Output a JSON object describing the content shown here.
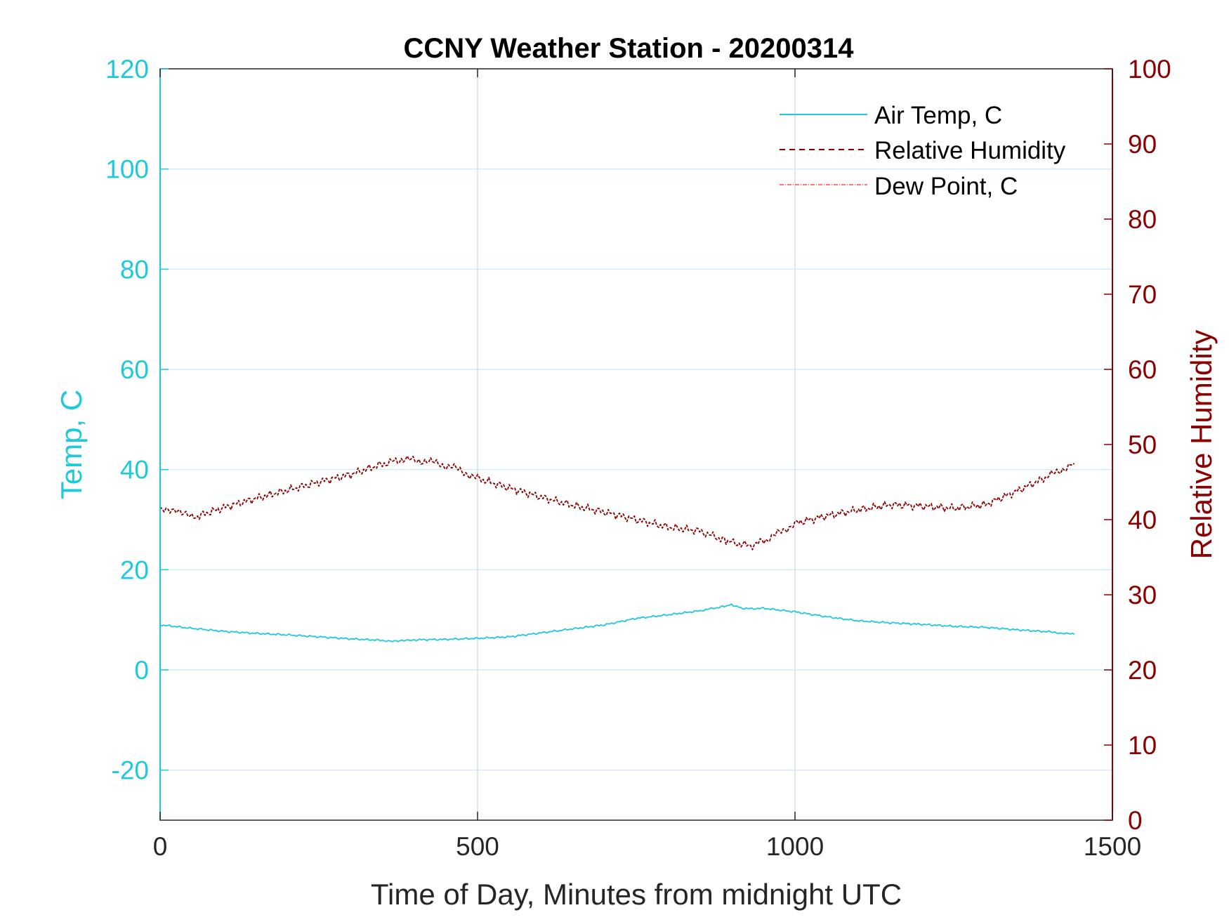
{
  "chart_data": {
    "type": "line",
    "title": "CCNY Weather Station - 20200314",
    "xlabel": "Time of Day, Minutes from midnight UTC",
    "ylabel_left": "Temp, C",
    "ylabel_right": "Relative Humidity",
    "xlim": [
      0,
      1500
    ],
    "ylim_left": [
      -30,
      120
    ],
    "ylim_right": [
      0,
      100
    ],
    "x_ticks": [
      "0",
      "500",
      "1000",
      "1500"
    ],
    "left_ticks": [
      "-20",
      "0",
      "20",
      "40",
      "60",
      "80",
      "100",
      "120"
    ],
    "right_ticks": [
      "0",
      "10",
      "20",
      "30",
      "40",
      "50",
      "60",
      "70",
      "80",
      "90",
      "100"
    ],
    "grid": true,
    "legend_position": "top-right",
    "colors": {
      "air_temp": "#1fc9dc",
      "humidity": "#8b0000",
      "dew_point": "#ff4d4d",
      "left_axis": "#1fc9dc",
      "right_axis": "#8b0000",
      "grid_h": "#cdeef6",
      "grid_v": "#d8dde2"
    },
    "series": [
      {
        "name": "Air Temp, C",
        "axis": "left",
        "style": "solid",
        "x": [
          0,
          50,
          100,
          150,
          200,
          250,
          300,
          350,
          375,
          400,
          450,
          500,
          550,
          600,
          650,
          700,
          750,
          800,
          850,
          880,
          900,
          920,
          950,
          1000,
          1050,
          1100,
          1150,
          1200,
          1250,
          1300,
          1350,
          1400,
          1440
        ],
        "y": [
          9.0,
          8.3,
          7.7,
          7.3,
          7.0,
          6.6,
          6.2,
          5.9,
          5.7,
          6.0,
          6.1,
          6.3,
          6.6,
          7.4,
          8.2,
          9.0,
          10.3,
          11.0,
          11.8,
          12.5,
          13.0,
          12.2,
          12.3,
          11.6,
          10.6,
          9.8,
          9.4,
          9.1,
          8.7,
          8.5,
          8.0,
          7.6,
          7.1
        ]
      },
      {
        "name": "Relative Humidity",
        "axis": "right",
        "style": "dashed",
        "x": [
          0,
          25,
          50,
          100,
          150,
          200,
          250,
          300,
          350,
          380,
          420,
          460,
          500,
          550,
          600,
          650,
          700,
          750,
          800,
          850,
          880,
          900,
          930,
          960,
          1000,
          1050,
          1100,
          1150,
          1200,
          1250,
          1300,
          1350,
          1400,
          1440
        ],
        "y": [
          41.2,
          41.5,
          40.2,
          41.6,
          42.8,
          43.9,
          45.0,
          46.0,
          47.4,
          48.0,
          47.8,
          47.0,
          45.5,
          44.2,
          43.0,
          41.9,
          41.0,
          40.0,
          39.0,
          38.5,
          37.5,
          37.0,
          36.5,
          37.5,
          39.5,
          40.5,
          41.3,
          42.0,
          41.8,
          41.5,
          42.0,
          43.8,
          45.8,
          47.5
        ]
      },
      {
        "name": "Dew Point, C",
        "axis": "left",
        "style": "dash-dot",
        "x": [],
        "y": []
      }
    ]
  }
}
